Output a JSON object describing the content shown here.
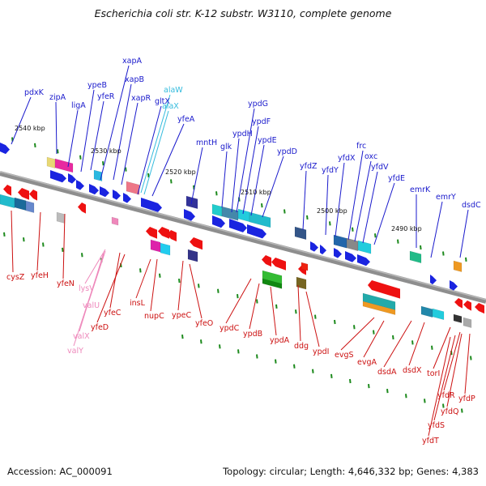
{
  "title": "Escherichia coli str. K-12 substr. W3110, complete genome",
  "footer": {
    "accession": "Accession: AC_000091",
    "topology": "Topology: circular; Length: 4,646,332 bp; Genes: 4,383"
  },
  "colors": {
    "forward_label": "#1a1acc",
    "reverse_label": "#cc1111",
    "trna_forward": "#33bbdd",
    "trna_reverse": "#ee88bb",
    "backbone": "#8a8a8a",
    "forward_arrow": "#1a24e0",
    "reverse_arrow": "#ee1111"
  },
  "scale_labels": [
    "2540 kbp",
    "2530 kbp",
    "2520 kbp",
    "2510 kbp",
    "2500 kbp",
    "2490 kbp"
  ],
  "forward_genes": [
    "pdxK",
    "zipA",
    "ligA",
    "ypeB",
    "yfeR",
    "xapA",
    "xapB",
    "xapR",
    "gltX",
    "alaW",
    "alaX",
    "yfeA",
    "mntH",
    "glk",
    "ypdH",
    "ypdG",
    "ypdF",
    "ypdE",
    "ypdD",
    "yfdZ",
    "yfdY",
    "yfdX",
    "frc",
    "oxc",
    "yfdV",
    "yfdE",
    "emrK",
    "emrY",
    "dsdC"
  ],
  "reverse_genes": [
    "cysZ",
    "yfeH",
    "yfeN",
    "lysV",
    "valU",
    "yfeC",
    "yfeD",
    "valX",
    "valY",
    "insL",
    "nupC",
    "ypeC",
    "yfeO",
    "ypdC",
    "ypdB",
    "ypdA",
    "ddg",
    "ypdI",
    "evgS",
    "evgA",
    "dsdA",
    "dsdX",
    "torI",
    "yfdR",
    "yfdQ",
    "yfdP",
    "yfdS",
    "yfdT"
  ]
}
